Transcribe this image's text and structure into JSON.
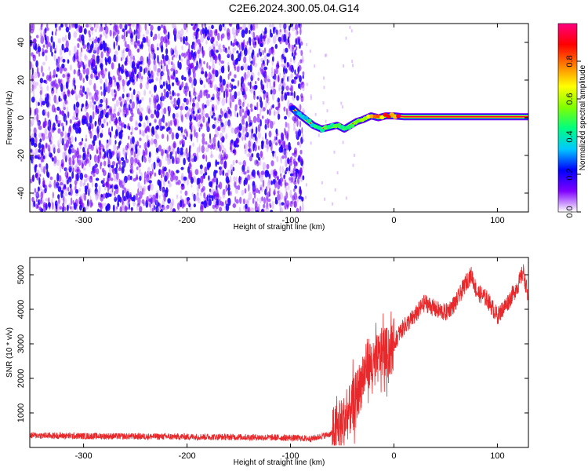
{
  "title": "C2E6.2024.300.05.04.G14",
  "chart_data": [
    {
      "type": "heatmap",
      "xlabel": "Height of straight line (km)",
      "ylabel": "Frequency (Hz)",
      "xlim": [
        -352,
        130
      ],
      "ylim": [
        -50,
        50
      ],
      "xticks": [
        -300,
        -200,
        -100,
        0,
        100
      ],
      "yticks": [
        -40,
        -20,
        0,
        20,
        40
      ],
      "colorbar": {
        "label": "Normalized spectral amplitude",
        "range": [
          0,
          1
        ],
        "ticks": [
          "0.0",
          "0.2",
          "0.4",
          "0.6",
          "0.8"
        ],
        "colors": [
          "#ffffff",
          "#7f00ff",
          "#0000ff",
          "#00c8ff",
          "#00ff80",
          "#80ff00",
          "#ffff00",
          "#ff8000",
          "#ff0000",
          "#ff0080"
        ]
      },
      "noise_region": {
        "x_end": -92,
        "level": 0.2
      },
      "signal_trace": {
        "x": [
          -98,
          -92,
          -85,
          -78,
          -70,
          -62,
          -55,
          -48,
          -42,
          -36,
          -30,
          -22,
          -15,
          -8,
          0,
          10,
          50,
          100,
          130
        ],
        "frequency": [
          5,
          2,
          -1,
          -4,
          -6,
          -5,
          -4,
          -6,
          -4,
          -2,
          -1,
          1,
          0,
          1,
          1,
          0.5,
          0.5,
          0.5,
          0.5
        ],
        "amplitude": [
          0.3,
          0.35,
          0.4,
          0.45,
          0.5,
          0.55,
          0.5,
          0.55,
          0.6,
          0.65,
          0.7,
          0.75,
          0.8,
          0.85,
          0.9,
          0.92,
          0.92,
          0.92,
          0.92
        ]
      }
    },
    {
      "type": "line",
      "xlabel": "Height of straight line (km)",
      "ylabel": "SNR (10 * v/v)",
      "xlim": [
        -352,
        130
      ],
      "ylim": [
        0,
        5500
      ],
      "xticks": [
        -300,
        -200,
        -100,
        0,
        100
      ],
      "yticks": [
        1000,
        2000,
        3000,
        4000,
        5000
      ],
      "series": [
        {
          "color": "#e8282a",
          "x": [
            -352,
            -300,
            -250,
            -200,
            -150,
            -100,
            -80,
            -60,
            -50,
            -40,
            -30,
            -25,
            -20,
            -15,
            -10,
            -5,
            0,
            5,
            10,
            20,
            30,
            40,
            50,
            60,
            70,
            75,
            80,
            90,
            100,
            110,
            120,
            125,
            130
          ],
          "y": [
            350,
            330,
            320,
            310,
            300,
            280,
            250,
            400,
            700,
            1200,
            2000,
            2500,
            2300,
            2600,
            2800,
            2700,
            3000,
            3300,
            3500,
            3800,
            4200,
            4000,
            3900,
            4200,
            4800,
            5000,
            4500,
            4300,
            3800,
            4200,
            4700,
            5100,
            4300
          ]
        }
      ]
    }
  ]
}
